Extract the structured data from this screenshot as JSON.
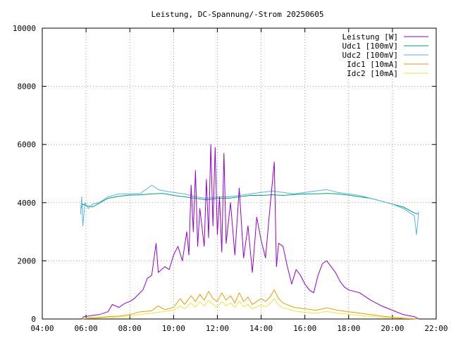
{
  "chart_data": {
    "type": "line",
    "title": "Leistung, DC-Spannung/-Strom 20250605",
    "xlabel": "",
    "ylabel": "",
    "x_unit": "time of day (hours)",
    "xlim": [
      4,
      22
    ],
    "ylim": [
      0,
      10000
    ],
    "x_tick_labels": [
      "04:00",
      "06:00",
      "08:00",
      "10:00",
      "12:00",
      "14:00",
      "16:00",
      "18:00",
      "20:00",
      "22:00"
    ],
    "y_tick_labels": [
      "0",
      "2000",
      "4000",
      "6000",
      "8000",
      "10000"
    ],
    "grid": true,
    "legend_position": "top-right",
    "series": [
      {
        "name": "Leistung [W]",
        "color": "#9400d3",
        "points": [
          [
            5.8,
            0
          ],
          [
            5.9,
            80
          ],
          [
            6.0,
            90
          ],
          [
            6.3,
            120
          ],
          [
            6.6,
            150
          ],
          [
            7.0,
            250
          ],
          [
            7.2,
            500
          ],
          [
            7.5,
            400
          ],
          [
            7.8,
            550
          ],
          [
            8.0,
            600
          ],
          [
            8.2,
            700
          ],
          [
            8.4,
            850
          ],
          [
            8.6,
            1000
          ],
          [
            8.8,
            1400
          ],
          [
            9.0,
            1500
          ],
          [
            9.2,
            2600
          ],
          [
            9.3,
            1600
          ],
          [
            9.6,
            1800
          ],
          [
            9.8,
            1700
          ],
          [
            10.0,
            2200
          ],
          [
            10.2,
            2500
          ],
          [
            10.4,
            2000
          ],
          [
            10.6,
            3000
          ],
          [
            10.7,
            2200
          ],
          [
            10.8,
            4600
          ],
          [
            10.9,
            3000
          ],
          [
            11.0,
            5100
          ],
          [
            11.1,
            2500
          ],
          [
            11.2,
            3800
          ],
          [
            11.4,
            2500
          ],
          [
            11.5,
            4800
          ],
          [
            11.6,
            2800
          ],
          [
            11.7,
            6000
          ],
          [
            11.8,
            3200
          ],
          [
            11.9,
            5900
          ],
          [
            12.0,
            2900
          ],
          [
            12.1,
            4200
          ],
          [
            12.2,
            2300
          ],
          [
            12.3,
            5700
          ],
          [
            12.4,
            2600
          ],
          [
            12.6,
            4000
          ],
          [
            12.8,
            2200
          ],
          [
            13.0,
            4500
          ],
          [
            13.2,
            2100
          ],
          [
            13.4,
            3200
          ],
          [
            13.6,
            1600
          ],
          [
            13.8,
            3500
          ],
          [
            14.0,
            2700
          ],
          [
            14.2,
            2100
          ],
          [
            14.4,
            3800
          ],
          [
            14.6,
            5400
          ],
          [
            14.7,
            1800
          ],
          [
            14.8,
            2600
          ],
          [
            15.0,
            2500
          ],
          [
            15.2,
            1800
          ],
          [
            15.4,
            1200
          ],
          [
            15.6,
            1700
          ],
          [
            15.8,
            1500
          ],
          [
            16.0,
            1200
          ],
          [
            16.2,
            1000
          ],
          [
            16.4,
            900
          ],
          [
            16.6,
            1500
          ],
          [
            16.8,
            1900
          ],
          [
            17.0,
            2000
          ],
          [
            17.2,
            1800
          ],
          [
            17.4,
            1600
          ],
          [
            17.6,
            1300
          ],
          [
            17.8,
            1100
          ],
          [
            18.0,
            1000
          ],
          [
            18.5,
            900
          ],
          [
            19.0,
            650
          ],
          [
            19.5,
            450
          ],
          [
            20.0,
            300
          ],
          [
            20.5,
            150
          ],
          [
            21.0,
            80
          ],
          [
            21.2,
            0
          ]
        ]
      },
      {
        "name": "Udc1 [100mV]",
        "color": "#009e73",
        "points": [
          [
            5.75,
            3800
          ],
          [
            5.85,
            3950
          ],
          [
            6.0,
            3900
          ],
          [
            6.3,
            3850
          ],
          [
            6.6,
            3980
          ],
          [
            7.0,
            4150
          ],
          [
            7.5,
            4220
          ],
          [
            8.0,
            4260
          ],
          [
            8.5,
            4270
          ],
          [
            9.0,
            4300
          ],
          [
            9.5,
            4320
          ],
          [
            10.0,
            4250
          ],
          [
            10.5,
            4200
          ],
          [
            11.0,
            4150
          ],
          [
            11.5,
            4100
          ],
          [
            12.0,
            4150
          ],
          [
            12.5,
            4150
          ],
          [
            13.0,
            4200
          ],
          [
            13.5,
            4250
          ],
          [
            14.0,
            4250
          ],
          [
            14.5,
            4270
          ],
          [
            15.0,
            4250
          ],
          [
            15.5,
            4280
          ],
          [
            16.0,
            4300
          ],
          [
            16.5,
            4300
          ],
          [
            17.0,
            4320
          ],
          [
            17.5,
            4300
          ],
          [
            18.0,
            4260
          ],
          [
            18.5,
            4200
          ],
          [
            19.0,
            4150
          ],
          [
            19.5,
            4050
          ],
          [
            20.0,
            3950
          ],
          [
            20.5,
            3850
          ],
          [
            21.0,
            3650
          ],
          [
            21.2,
            3600
          ]
        ]
      },
      {
        "name": "Udc2 [100mV]",
        "color": "#56b4e9",
        "points": [
          [
            5.75,
            3600
          ],
          [
            5.8,
            4200
          ],
          [
            5.85,
            3200
          ],
          [
            5.95,
            4000
          ],
          [
            6.1,
            3800
          ],
          [
            6.3,
            3950
          ],
          [
            6.6,
            4000
          ],
          [
            7.0,
            4200
          ],
          [
            7.5,
            4300
          ],
          [
            8.0,
            4300
          ],
          [
            8.5,
            4320
          ],
          [
            9.0,
            4600
          ],
          [
            9.3,
            4450
          ],
          [
            9.6,
            4400
          ],
          [
            10.0,
            4350
          ],
          [
            10.5,
            4300
          ],
          [
            11.0,
            4200
          ],
          [
            11.5,
            4150
          ],
          [
            12.0,
            4200
          ],
          [
            12.5,
            4200
          ],
          [
            13.0,
            4250
          ],
          [
            13.5,
            4300
          ],
          [
            14.0,
            4350
          ],
          [
            14.5,
            4400
          ],
          [
            15.0,
            4350
          ],
          [
            15.5,
            4300
          ],
          [
            16.0,
            4350
          ],
          [
            16.5,
            4400
          ],
          [
            17.0,
            4450
          ],
          [
            17.5,
            4350
          ],
          [
            18.0,
            4300
          ],
          [
            18.5,
            4250
          ],
          [
            19.0,
            4150
          ],
          [
            19.5,
            4050
          ],
          [
            20.0,
            3950
          ],
          [
            20.5,
            3800
          ],
          [
            21.0,
            3550
          ],
          [
            21.1,
            2900
          ],
          [
            21.2,
            3700
          ]
        ]
      },
      {
        "name": "Idc1 [10mA]",
        "color": "#e69f00",
        "points": [
          [
            5.8,
            0
          ],
          [
            6.0,
            30
          ],
          [
            6.5,
            50
          ],
          [
            7.0,
            80
          ],
          [
            7.5,
            100
          ],
          [
            8.0,
            150
          ],
          [
            8.5,
            250
          ],
          [
            9.0,
            280
          ],
          [
            9.3,
            450
          ],
          [
            9.6,
            320
          ],
          [
            10.0,
            400
          ],
          [
            10.3,
            700
          ],
          [
            10.5,
            500
          ],
          [
            10.8,
            800
          ],
          [
            11.0,
            600
          ],
          [
            11.2,
            850
          ],
          [
            11.4,
            650
          ],
          [
            11.6,
            950
          ],
          [
            11.8,
            700
          ],
          [
            12.0,
            600
          ],
          [
            12.2,
            900
          ],
          [
            12.4,
            650
          ],
          [
            12.6,
            800
          ],
          [
            12.8,
            550
          ],
          [
            13.0,
            900
          ],
          [
            13.2,
            600
          ],
          [
            13.4,
            750
          ],
          [
            13.6,
            500
          ],
          [
            13.8,
            600
          ],
          [
            14.0,
            700
          ],
          [
            14.2,
            600
          ],
          [
            14.4,
            750
          ],
          [
            14.6,
            1000
          ],
          [
            14.8,
            700
          ],
          [
            15.0,
            550
          ],
          [
            15.5,
            400
          ],
          [
            16.0,
            350
          ],
          [
            16.5,
            300
          ],
          [
            17.0,
            380
          ],
          [
            17.5,
            300
          ],
          [
            18.0,
            250
          ],
          [
            18.5,
            200
          ],
          [
            19.0,
            150
          ],
          [
            19.5,
            100
          ],
          [
            20.0,
            60
          ],
          [
            20.5,
            30
          ],
          [
            21.0,
            10
          ],
          [
            21.2,
            0
          ]
        ]
      },
      {
        "name": "Idc2 [10mA]",
        "color": "#f0e442",
        "points": [
          [
            5.8,
            0
          ],
          [
            6.0,
            20
          ],
          [
            6.5,
            30
          ],
          [
            7.0,
            50
          ],
          [
            7.5,
            70
          ],
          [
            8.0,
            100
          ],
          [
            8.5,
            150
          ],
          [
            9.0,
            200
          ],
          [
            9.5,
            250
          ],
          [
            10.0,
            300
          ],
          [
            10.3,
            450
          ],
          [
            10.5,
            350
          ],
          [
            10.8,
            550
          ],
          [
            11.0,
            400
          ],
          [
            11.2,
            600
          ],
          [
            11.4,
            450
          ],
          [
            11.6,
            650
          ],
          [
            11.8,
            500
          ],
          [
            12.0,
            420
          ],
          [
            12.2,
            600
          ],
          [
            12.4,
            450
          ],
          [
            12.6,
            550
          ],
          [
            12.8,
            400
          ],
          [
            13.0,
            620
          ],
          [
            13.2,
            420
          ],
          [
            13.4,
            500
          ],
          [
            13.6,
            350
          ],
          [
            13.8,
            420
          ],
          [
            14.0,
            480
          ],
          [
            14.2,
            420
          ],
          [
            14.4,
            520
          ],
          [
            14.6,
            700
          ],
          [
            14.8,
            480
          ],
          [
            15.0,
            380
          ],
          [
            15.5,
            280
          ],
          [
            16.0,
            230
          ],
          [
            16.5,
            200
          ],
          [
            17.0,
            260
          ],
          [
            17.5,
            200
          ],
          [
            18.0,
            160
          ],
          [
            18.5,
            120
          ],
          [
            19.0,
            90
          ],
          [
            19.5,
            60
          ],
          [
            20.0,
            40
          ],
          [
            20.5,
            20
          ],
          [
            21.0,
            5
          ],
          [
            21.2,
            0
          ]
        ]
      }
    ]
  }
}
